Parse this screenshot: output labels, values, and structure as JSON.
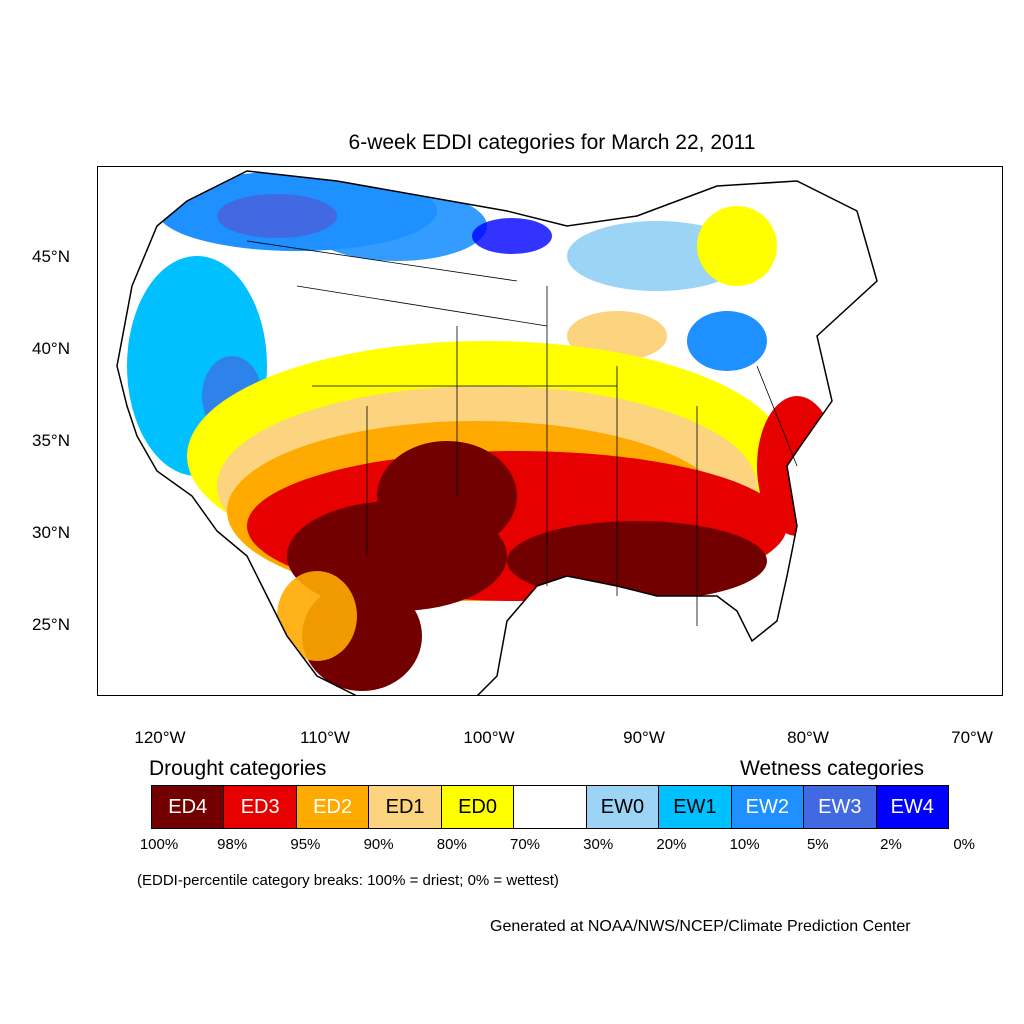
{
  "title": "6-week EDDI categories for March 22, 2011",
  "axes": {
    "lat_labels": [
      "45°N",
      "40°N",
      "35°N",
      "30°N",
      "25°N"
    ],
    "lon_labels": [
      "120°W",
      "110°W",
      "100°W",
      "90°W",
      "80°W",
      "70°W"
    ]
  },
  "legend": {
    "drought_heading": "Drought categories",
    "wetness_heading": "Wetness categories",
    "categories": [
      {
        "label": "ED4",
        "color": "#730000",
        "text_color": "#ffffff"
      },
      {
        "label": "ED3",
        "color": "#e60000",
        "text_color": "#ffffff"
      },
      {
        "label": "ED2",
        "color": "#ffaa00",
        "text_color": "#ffffff"
      },
      {
        "label": "ED1",
        "color": "#fcd37f",
        "text_color": "#000000"
      },
      {
        "label": "ED0",
        "color": "#ffff00",
        "text_color": "#000000"
      },
      {
        "label": "",
        "color": "#ffffff",
        "text_color": "#000000"
      },
      {
        "label": "EW0",
        "color": "#9bd4f5",
        "text_color": "#000000"
      },
      {
        "label": "EW1",
        "color": "#00c0ff",
        "text_color": "#000000"
      },
      {
        "label": "EW2",
        "color": "#1e90ff",
        "text_color": "#ffffff"
      },
      {
        "label": "EW3",
        "color": "#4169e1",
        "text_color": "#ffffff"
      },
      {
        "label": "EW4",
        "color": "#0000ff",
        "text_color": "#ffffff"
      }
    ],
    "percentiles": [
      "100%",
      "98%",
      "95%",
      "90%",
      "80%",
      "70%",
      "30%",
      "20%",
      "10%",
      "5%",
      "2%",
      "0%"
    ]
  },
  "break_note": "(EDDI-percentile category breaks: 100% = driest; 0% = wettest)",
  "credit": "Generated at NOAA/NWS/NCEP/Climate Prediction Center"
}
